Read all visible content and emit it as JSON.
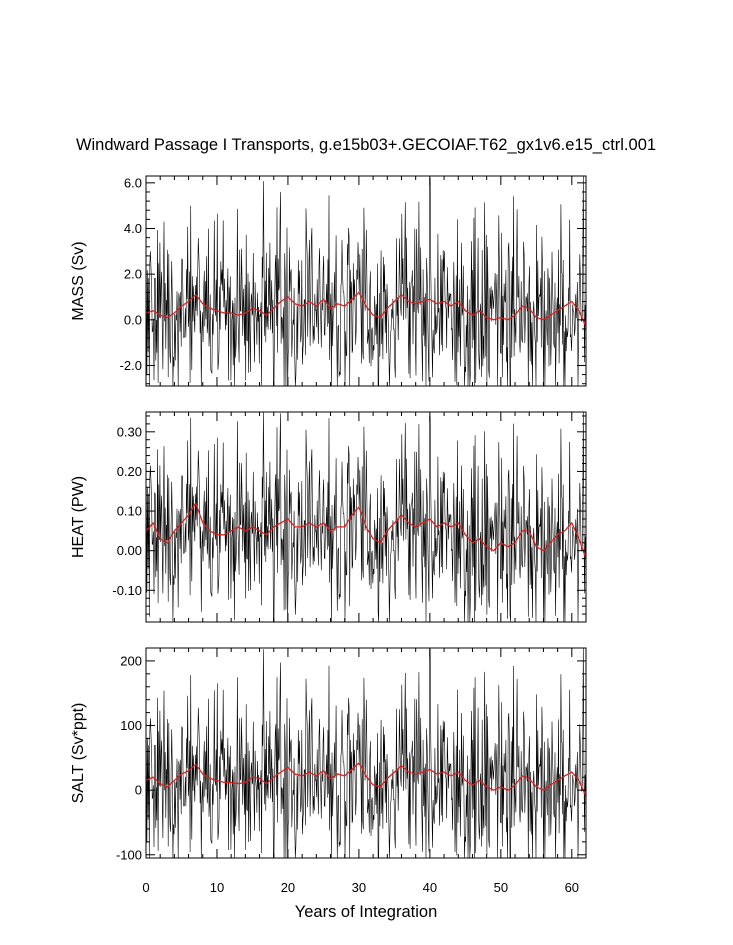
{
  "chart_data": {
    "type": "line",
    "title": "Windward Passage I Transports, g.e15b03+.GECOIAF.T62_gx1v6.e15_ctrl.001",
    "xlabel": "Years of Integration",
    "xlim": [
      0,
      62
    ],
    "xticks": [
      0,
      10,
      20,
      30,
      40,
      50,
      60
    ],
    "xtick_labels": [
      "0",
      "10",
      "20",
      "30",
      "40",
      "50",
      "60"
    ],
    "series_colors": {
      "monthly": "#000000",
      "smoothed": "#d62020"
    },
    "panels": [
      {
        "name": "mass",
        "ylabel": "MASS (Sv)",
        "ylim": [
          -2.9,
          6.3
        ],
        "yticks": [
          -2.0,
          0.0,
          2.0,
          4.0,
          6.0
        ],
        "ytick_labels": [
          "-2.0",
          "0.0",
          "2.0",
          "4.0",
          "6.0"
        ],
        "smoothed": {
          "x": [
            0,
            1,
            2,
            3,
            4,
            5,
            6,
            7,
            8,
            9,
            10,
            11,
            12,
            13,
            14,
            15,
            16,
            17,
            18,
            19,
            20,
            21,
            22,
            23,
            24,
            25,
            26,
            27,
            28,
            29,
            30,
            31,
            32,
            33,
            34,
            35,
            36,
            37,
            38,
            39,
            40,
            41,
            42,
            43,
            44,
            45,
            46,
            47,
            48,
            49,
            50,
            51,
            52,
            53,
            54,
            55,
            56,
            57,
            58,
            59,
            60,
            61,
            62
          ],
          "values": [
            0.3,
            0.4,
            0.2,
            0.1,
            0.3,
            0.6,
            0.8,
            1.1,
            0.7,
            0.5,
            0.4,
            0.3,
            0.3,
            0.2,
            0.3,
            0.5,
            0.4,
            0.2,
            0.5,
            0.8,
            1.0,
            0.7,
            0.6,
            0.8,
            0.6,
            0.9,
            0.5,
            0.7,
            0.6,
            0.9,
            1.2,
            0.6,
            0.2,
            0.1,
            0.5,
            0.8,
            1.1,
            0.8,
            0.7,
            0.8,
            0.9,
            0.7,
            0.8,
            0.6,
            0.8,
            0.4,
            0.2,
            0.4,
            0.1,
            0.0,
            0.1,
            0.0,
            0.2,
            0.6,
            0.5,
            0.1,
            0.0,
            0.2,
            0.4,
            0.6,
            0.8,
            0.4,
            -0.3
          ]
        },
        "monthly_summary": {
          "max": 6.2,
          "max_year": 40,
          "min": -2.9,
          "min_year": 18
        }
      },
      {
        "name": "heat",
        "ylabel": "HEAT (PW)",
        "ylim": [
          -0.18,
          0.35
        ],
        "yticks": [
          -0.1,
          0.0,
          0.1,
          0.2,
          0.3
        ],
        "ytick_labels": [
          "-0.10",
          "0.00",
          "0.10",
          "0.20",
          "0.30"
        ],
        "smoothed": {
          "x": [
            0,
            1,
            2,
            3,
            4,
            5,
            6,
            7,
            8,
            9,
            10,
            11,
            12,
            13,
            14,
            15,
            16,
            17,
            18,
            19,
            20,
            21,
            22,
            23,
            24,
            25,
            26,
            27,
            28,
            29,
            30,
            31,
            32,
            33,
            34,
            35,
            36,
            37,
            38,
            39,
            40,
            41,
            42,
            43,
            44,
            45,
            46,
            47,
            48,
            49,
            50,
            51,
            52,
            53,
            54,
            55,
            56,
            57,
            58,
            59,
            60,
            61,
            62
          ],
          "values": [
            0.05,
            0.07,
            0.03,
            0.02,
            0.05,
            0.07,
            0.09,
            0.12,
            0.07,
            0.05,
            0.04,
            0.04,
            0.05,
            0.06,
            0.05,
            0.06,
            0.05,
            0.04,
            0.06,
            0.07,
            0.08,
            0.06,
            0.06,
            0.07,
            0.06,
            0.07,
            0.05,
            0.06,
            0.06,
            0.09,
            0.11,
            0.06,
            0.03,
            0.02,
            0.05,
            0.07,
            0.09,
            0.07,
            0.06,
            0.07,
            0.08,
            0.06,
            0.07,
            0.06,
            0.07,
            0.04,
            0.02,
            0.03,
            0.01,
            0.0,
            0.02,
            0.01,
            0.02,
            0.05,
            0.05,
            0.01,
            0.0,
            0.02,
            0.04,
            0.05,
            0.07,
            0.03,
            -0.02
          ]
        },
        "monthly_summary": {
          "max": 0.34,
          "max_year": 40,
          "min": -0.18,
          "min_year": 18
        }
      },
      {
        "name": "salt",
        "ylabel": "SALT (Sv*ppt)",
        "ylim": [
          -105,
          220
        ],
        "yticks": [
          -100,
          0,
          100,
          200
        ],
        "ytick_labels": [
          "-100",
          "0",
          "100",
          "200"
        ],
        "smoothed": {
          "x": [
            0,
            1,
            2,
            3,
            4,
            5,
            6,
            7,
            8,
            9,
            10,
            11,
            12,
            13,
            14,
            15,
            16,
            17,
            18,
            19,
            20,
            21,
            22,
            23,
            24,
            25,
            26,
            27,
            28,
            29,
            30,
            31,
            32,
            33,
            34,
            35,
            36,
            37,
            38,
            39,
            40,
            41,
            42,
            43,
            44,
            45,
            46,
            47,
            48,
            49,
            50,
            51,
            52,
            53,
            54,
            55,
            56,
            57,
            58,
            59,
            60,
            61,
            62
          ],
          "values": [
            15,
            20,
            10,
            5,
            15,
            25,
            30,
            40,
            25,
            18,
            15,
            12,
            12,
            10,
            12,
            20,
            18,
            10,
            20,
            28,
            35,
            25,
            22,
            28,
            22,
            30,
            18,
            25,
            22,
            32,
            42,
            22,
            8,
            5,
            18,
            28,
            38,
            28,
            25,
            28,
            32,
            25,
            28,
            22,
            28,
            15,
            8,
            15,
            5,
            0,
            5,
            0,
            8,
            22,
            18,
            5,
            0,
            8,
            15,
            22,
            28,
            15,
            -10
          ]
        },
        "monthly_summary": {
          "max": 218,
          "max_year": 40,
          "min": -105,
          "min_year": 18
        }
      }
    ]
  }
}
